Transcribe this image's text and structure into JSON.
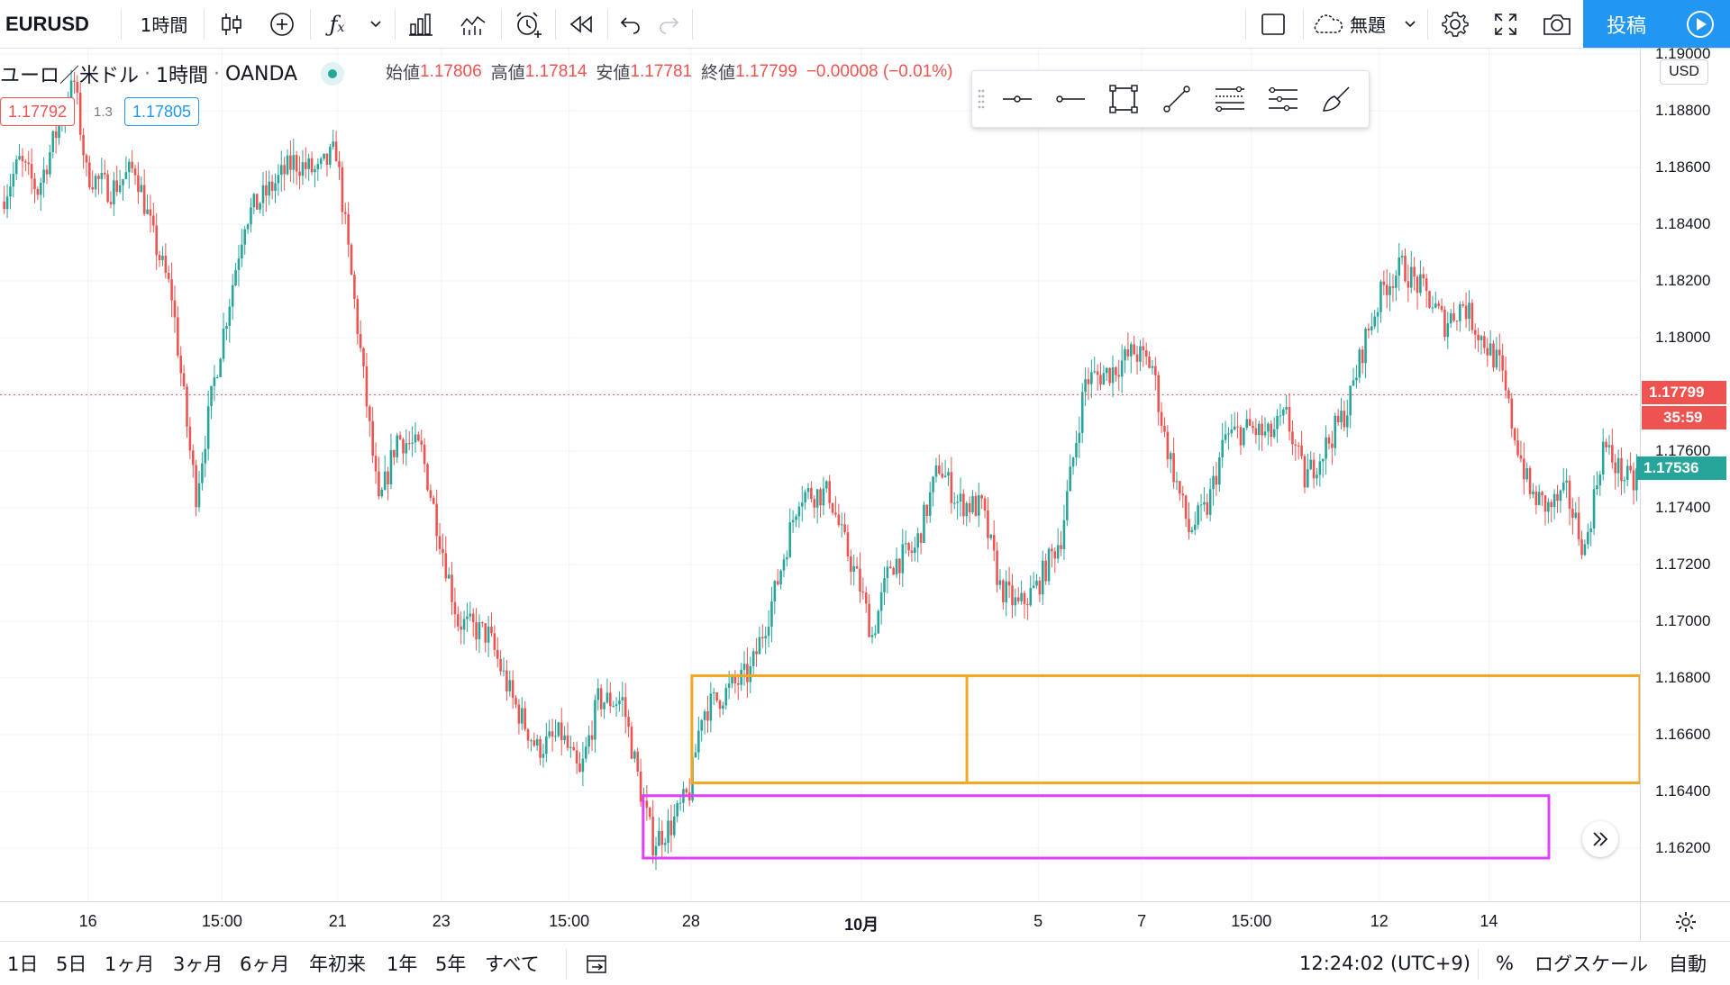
{
  "toolbar": {
    "symbol": "EURUSD",
    "interval": "1時間",
    "layout_name": "無題",
    "publish_label": "投稿"
  },
  "legend": {
    "pair_name": "ユーロ／米ドル",
    "interval": "1時間",
    "exchange": "OANDA",
    "open_label": "始値",
    "open": "1.17806",
    "high_label": "高値",
    "high": "1.17814",
    "low_label": "安値",
    "low": "1.17781",
    "close_label": "終値",
    "close": "1.17799",
    "change": "−0.00008 (−0.01%)",
    "bid": "1.17792",
    "spread": "1.3",
    "ask": "1.17805"
  },
  "price_axis": {
    "currency": "USD",
    "labels": [
      "1.19000",
      "1.18800",
      "1.18600",
      "1.18400",
      "1.18200",
      "1.18000",
      "1.17600",
      "1.17400",
      "1.17200",
      "1.17000",
      "1.16800",
      "1.16600",
      "1.16400",
      "1.16200"
    ],
    "current_price": "1.17799",
    "countdown": "35:59",
    "crosshair_price": "1.17536"
  },
  "time_axis": {
    "labels": [
      "16",
      "15:00",
      "21",
      "23",
      "15:00",
      "28",
      "10月",
      "5",
      "7",
      "15:00",
      "12",
      "14"
    ]
  },
  "bottom_bar": {
    "ranges": [
      "1日",
      "5日",
      "1ヶ月",
      "3ヶ月",
      "6ヶ月",
      "年初来",
      "1年",
      "5年",
      "すべて"
    ],
    "clock": "12:24:02 (UTC+9)",
    "percent": "%",
    "log_scale": "ログスケール",
    "auto": "自動"
  },
  "chart_data": {
    "type": "candlestick",
    "y_axis_range": [
      1.161,
      1.19
    ],
    "anchors": [
      {
        "t": 0,
        "p": 1.1848
      },
      {
        "t": 6,
        "p": 1.1862
      },
      {
        "t": 12,
        "p": 1.1852
      },
      {
        "t": 18,
        "p": 1.1872
      },
      {
        "t": 24,
        "p": 1.189
      },
      {
        "t": 28,
        "p": 1.1858
      },
      {
        "t": 36,
        "p": 1.1852
      },
      {
        "t": 44,
        "p": 1.186
      },
      {
        "t": 50,
        "p": 1.1835
      },
      {
        "t": 56,
        "p": 1.1815
      },
      {
        "t": 62,
        "p": 1.176
      },
      {
        "t": 64,
        "p": 1.1745
      },
      {
        "t": 70,
        "p": 1.1785
      },
      {
        "t": 80,
        "p": 1.1842
      },
      {
        "t": 88,
        "p": 1.1852
      },
      {
        "t": 96,
        "p": 1.1862
      },
      {
        "t": 104,
        "p": 1.1858
      },
      {
        "t": 110,
        "p": 1.1866
      },
      {
        "t": 114,
        "p": 1.183
      },
      {
        "t": 118,
        "p": 1.1795
      },
      {
        "t": 124,
        "p": 1.174
      },
      {
        "t": 130,
        "p": 1.1765
      },
      {
        "t": 138,
        "p": 1.176
      },
      {
        "t": 144,
        "p": 1.173
      },
      {
        "t": 150,
        "p": 1.17
      },
      {
        "t": 160,
        "p": 1.1695
      },
      {
        "t": 168,
        "p": 1.1672
      },
      {
        "t": 176,
        "p": 1.1655
      },
      {
        "t": 184,
        "p": 1.166
      },
      {
        "t": 190,
        "p": 1.1645
      },
      {
        "t": 196,
        "p": 1.1672
      },
      {
        "t": 204,
        "p": 1.1672
      },
      {
        "t": 210,
        "p": 1.164
      },
      {
        "t": 214,
        "p": 1.1622
      },
      {
        "t": 220,
        "p": 1.1628
      },
      {
        "t": 226,
        "p": 1.164
      },
      {
        "t": 230,
        "p": 1.1668
      },
      {
        "t": 238,
        "p": 1.1675
      },
      {
        "t": 246,
        "p": 1.1682
      },
      {
        "t": 254,
        "p": 1.171
      },
      {
        "t": 262,
        "p": 1.1745
      },
      {
        "t": 272,
        "p": 1.1745
      },
      {
        "t": 276,
        "p": 1.173
      },
      {
        "t": 282,
        "p": 1.1712
      },
      {
        "t": 286,
        "p": 1.1695
      },
      {
        "t": 292,
        "p": 1.172
      },
      {
        "t": 300,
        "p": 1.1725
      },
      {
        "t": 308,
        "p": 1.1755
      },
      {
        "t": 314,
        "p": 1.1742
      },
      {
        "t": 322,
        "p": 1.174
      },
      {
        "t": 328,
        "p": 1.1712
      },
      {
        "t": 334,
        "p": 1.1705
      },
      {
        "t": 340,
        "p": 1.1712
      },
      {
        "t": 348,
        "p": 1.173
      },
      {
        "t": 356,
        "p": 1.1785
      },
      {
        "t": 364,
        "p": 1.1788
      },
      {
        "t": 372,
        "p": 1.1795
      },
      {
        "t": 378,
        "p": 1.179
      },
      {
        "t": 382,
        "p": 1.1765
      },
      {
        "t": 390,
        "p": 1.1732
      },
      {
        "t": 396,
        "p": 1.174
      },
      {
        "t": 402,
        "p": 1.1765
      },
      {
        "t": 410,
        "p": 1.1768
      },
      {
        "t": 416,
        "p": 1.1765
      },
      {
        "t": 422,
        "p": 1.1772
      },
      {
        "t": 428,
        "p": 1.175
      },
      {
        "t": 434,
        "p": 1.176
      },
      {
        "t": 442,
        "p": 1.1775
      },
      {
        "t": 448,
        "p": 1.18
      },
      {
        "t": 454,
        "p": 1.1818
      },
      {
        "t": 460,
        "p": 1.1825
      },
      {
        "t": 468,
        "p": 1.1815
      },
      {
        "t": 474,
        "p": 1.1805
      },
      {
        "t": 480,
        "p": 1.1812
      },
      {
        "t": 486,
        "p": 1.18
      },
      {
        "t": 492,
        "p": 1.179
      },
      {
        "t": 496,
        "p": 1.177
      },
      {
        "t": 502,
        "p": 1.1745
      },
      {
        "t": 508,
        "p": 1.174
      },
      {
        "t": 514,
        "p": 1.1745
      },
      {
        "t": 520,
        "p": 1.1725
      },
      {
        "t": 526,
        "p": 1.1762
      },
      {
        "t": 532,
        "p": 1.1752
      },
      {
        "t": 536,
        "p": 1.1748
      }
    ],
    "last_close": 1.17799,
    "current_price_line": 1.17799,
    "drawings": [
      {
        "kind": "rectangle",
        "color": "#f5a623",
        "from_bar": 226,
        "to_bar": "right-edge",
        "top": 1.16808,
        "bottom": 1.1643,
        "divider_bar": 316
      },
      {
        "kind": "rectangle",
        "color": "#e040fb",
        "from_bar": 210,
        "to_bar": 500,
        "top": 1.16385,
        "bottom": 1.16165
      }
    ],
    "colors": {
      "up": "#26a69a",
      "down": "#ef5350",
      "current_price": "#ef5350",
      "crosshair": "#26a69a"
    }
  }
}
